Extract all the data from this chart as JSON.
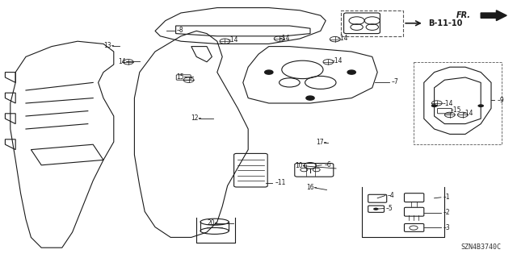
{
  "title": "",
  "bg_color": "#ffffff",
  "line_color": "#1a1a1a",
  "label_color": "#000000",
  "fig_width": 6.4,
  "fig_height": 3.2,
  "dpi": 100,
  "watermark": "SZN4B3740C",
  "fr_label": "FR.",
  "ref_label": "B-11-10"
}
